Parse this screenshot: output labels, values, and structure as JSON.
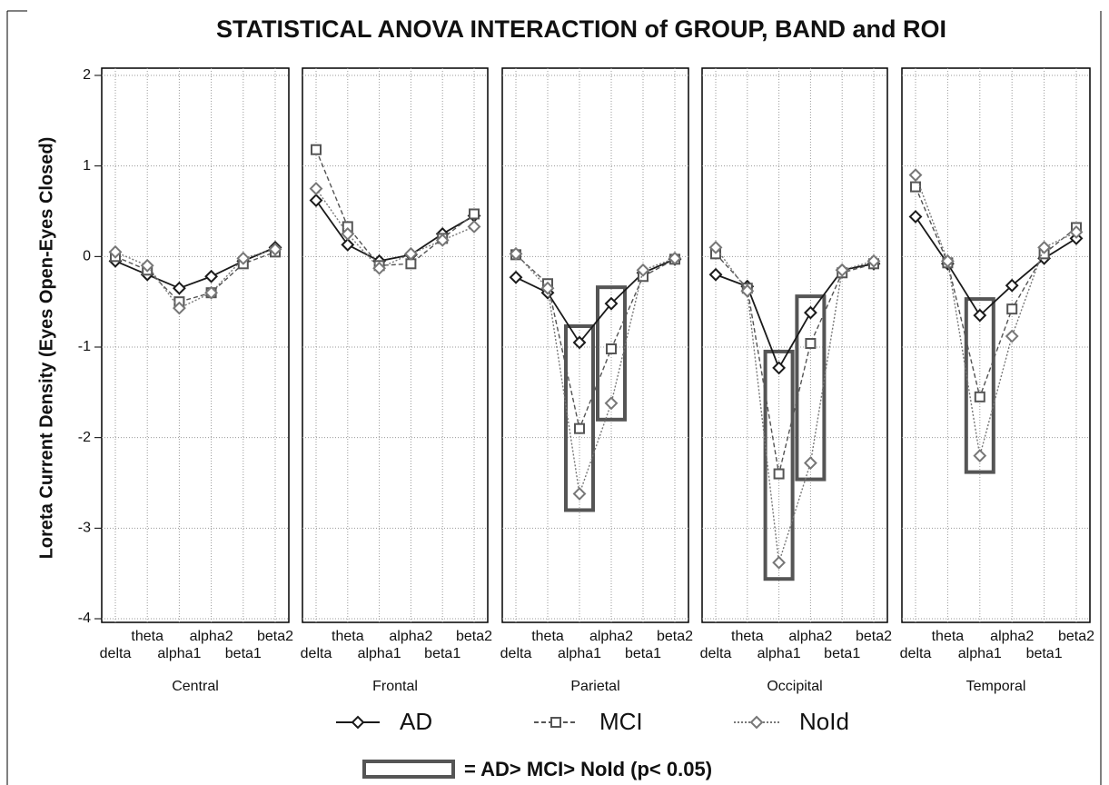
{
  "chart_data": {
    "type": "line",
    "title": "STATISTICAL ANOVA INTERACTION of GROUP, BAND and ROI",
    "y_label": "Loreta Current Density (Eyes Open-Eyes Closed)",
    "ylim": [
      -4,
      2
    ],
    "yticks": [
      -4,
      -3,
      -2,
      -1,
      0,
      1,
      2
    ],
    "grid": true,
    "categories": [
      "delta",
      "theta",
      "alpha1",
      "alpha2",
      "beta1",
      "beta2"
    ],
    "series": [
      {
        "name": "AD",
        "color": "#1a1a1a",
        "marker": "diamond",
        "dash": "none"
      },
      {
        "name": "MCI",
        "color": "#555555",
        "marker": "square",
        "dash": "5,3"
      },
      {
        "name": "NoId",
        "color": "#777777",
        "marker": "diamond",
        "dash": "2,2"
      }
    ],
    "panels": [
      {
        "label": "Central",
        "highlight": [],
        "values": [
          [
            -0.05,
            -0.2,
            -0.35,
            -0.22,
            -0.05,
            0.1
          ],
          [
            0.0,
            -0.15,
            -0.5,
            -0.4,
            -0.08,
            0.05
          ],
          [
            0.05,
            -0.1,
            -0.57,
            -0.4,
            -0.02,
            0.08
          ]
        ]
      },
      {
        "label": "Frontal",
        "highlight": [],
        "values": [
          [
            0.62,
            0.13,
            -0.05,
            0.02,
            0.25,
            0.45
          ],
          [
            1.18,
            0.33,
            -0.1,
            -0.08,
            0.2,
            0.47
          ],
          [
            0.75,
            0.25,
            -0.13,
            0.03,
            0.18,
            0.33
          ]
        ]
      },
      {
        "label": "Parietal",
        "highlight": [
          2,
          3
        ],
        "values": [
          [
            -0.23,
            -0.4,
            -0.95,
            -0.52,
            -0.18,
            -0.03
          ],
          [
            0.02,
            -0.3,
            -1.9,
            -1.02,
            -0.22,
            -0.03
          ],
          [
            0.03,
            -0.35,
            -2.62,
            -1.62,
            -0.15,
            -0.02
          ]
        ]
      },
      {
        "label": "Occipital",
        "highlight": [
          2,
          3
        ],
        "values": [
          [
            -0.2,
            -0.33,
            -1.23,
            -0.62,
            -0.15,
            -0.08
          ],
          [
            0.03,
            -0.35,
            -2.4,
            -0.96,
            -0.18,
            -0.08
          ],
          [
            0.1,
            -0.38,
            -3.38,
            -2.28,
            -0.15,
            -0.05
          ]
        ]
      },
      {
        "label": "Temporal",
        "highlight": [
          2
        ],
        "values": [
          [
            0.44,
            -0.08,
            -0.65,
            -0.32,
            -0.02,
            0.2
          ],
          [
            0.77,
            -0.07,
            -1.55,
            -0.58,
            0.03,
            0.32
          ],
          [
            0.9,
            -0.05,
            -2.2,
            -0.88,
            0.1,
            0.27
          ]
        ]
      }
    ],
    "significance_note": "= AD> MCI> NoId (p< 0.05)"
  }
}
